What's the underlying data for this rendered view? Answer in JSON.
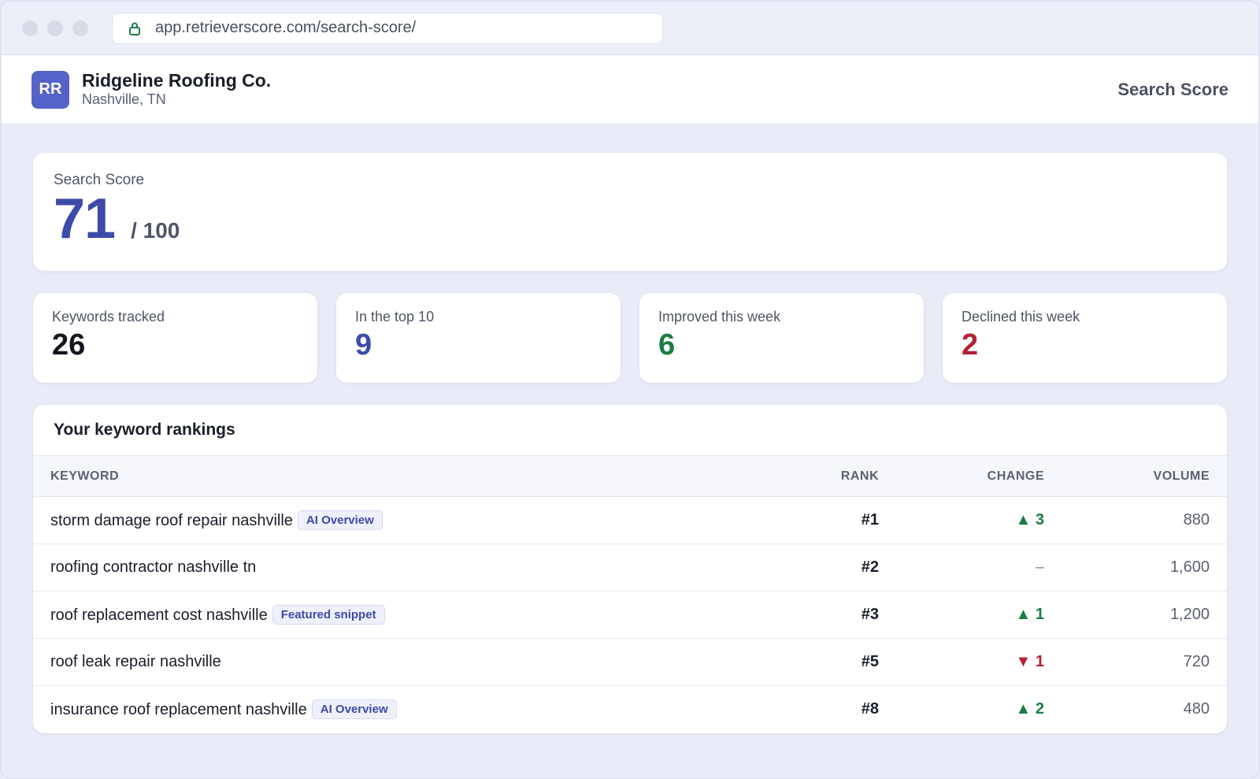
{
  "browser": {
    "url": "app.retrieverscore.com/search-score/"
  },
  "header": {
    "avatar_initials": "RR",
    "business_name": "Ridgeline Roofing Co.",
    "business_location": "Nashville, TN",
    "page_title": "Search Score"
  },
  "score": {
    "label": "Search Score",
    "value": "71",
    "max": "/ 100"
  },
  "stats": [
    {
      "label": "Keywords tracked",
      "value": "26"
    },
    {
      "label": "In the top 10",
      "value": "9"
    },
    {
      "label": "Improved this week",
      "value": "6"
    },
    {
      "label": "Declined this week",
      "value": "2"
    }
  ],
  "rankings": {
    "title": "Your keyword rankings",
    "columns": {
      "keyword": "KEYWORD",
      "rank": "RANK",
      "change": "CHANGE",
      "volume": "VOLUME"
    },
    "rows": [
      {
        "keyword": "storm damage roof repair nashville",
        "badge": "AI Overview",
        "rank": "#1",
        "change": "▲ 3",
        "change_dir": "up",
        "volume": "880"
      },
      {
        "keyword": "roofing contractor nashville tn",
        "badge": "",
        "rank": "#2",
        "change": "–",
        "change_dir": "none",
        "volume": "1,600"
      },
      {
        "keyword": "roof replacement cost nashville",
        "badge": "Featured snippet",
        "rank": "#3",
        "change": "▲ 1",
        "change_dir": "up",
        "volume": "1,200"
      },
      {
        "keyword": "roof leak repair nashville",
        "badge": "",
        "rank": "#5",
        "change": "▼ 1",
        "change_dir": "down",
        "volume": "720"
      },
      {
        "keyword": "insurance roof replacement nashville",
        "badge": "AI Overview",
        "rank": "#8",
        "change": "▲ 2",
        "change_dir": "up",
        "volume": "480"
      }
    ]
  },
  "colors": {
    "accent": "#3d4aa8",
    "avatar": "#5563c9",
    "up": "#1b7d45",
    "down": "#b52032"
  },
  "icons": {
    "url_lock": "lock-icon"
  }
}
